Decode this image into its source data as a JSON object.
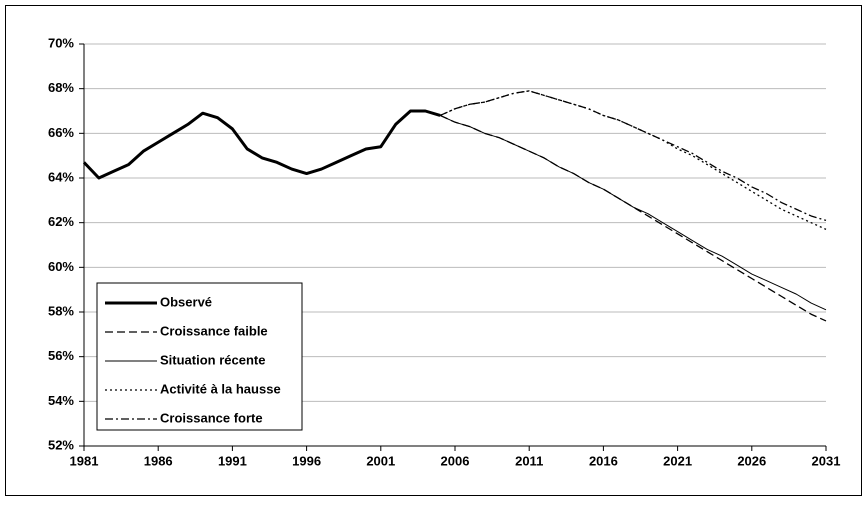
{
  "chart_data": {
    "type": "line",
    "x": [
      1981,
      1982,
      1983,
      1984,
      1985,
      1986,
      1987,
      1988,
      1989,
      1990,
      1991,
      1992,
      1993,
      1994,
      1995,
      1996,
      1997,
      1998,
      1999,
      2000,
      2001,
      2002,
      2003,
      2004,
      2005,
      2006,
      2007,
      2008,
      2009,
      2010,
      2011,
      2012,
      2013,
      2014,
      2015,
      2016,
      2017,
      2018,
      2019,
      2020,
      2021,
      2022,
      2023,
      2024,
      2025,
      2026,
      2027,
      2028,
      2029,
      2030,
      2031
    ],
    "series": [
      {
        "name": "Observé",
        "color": "#000000",
        "style": "thick",
        "values": [
          64.7,
          64.0,
          64.3,
          64.6,
          65.2,
          65.6,
          66.0,
          66.4,
          66.9,
          66.7,
          66.2,
          65.3,
          64.9,
          64.7,
          64.4,
          64.2,
          64.4,
          64.7,
          65.0,
          65.3,
          65.4,
          66.4,
          67.0,
          67.0,
          66.8,
          null,
          null,
          null,
          null,
          null,
          null,
          null,
          null,
          null,
          null,
          null,
          null,
          null,
          null,
          null,
          null,
          null,
          null,
          null,
          null,
          null,
          null,
          null,
          null,
          null,
          null
        ]
      },
      {
        "name": "Croissance faible",
        "color": "#000000",
        "style": "dashed",
        "values": [
          null,
          null,
          null,
          null,
          null,
          null,
          null,
          null,
          null,
          null,
          null,
          null,
          null,
          null,
          null,
          null,
          null,
          null,
          null,
          null,
          null,
          null,
          null,
          null,
          66.8,
          66.5,
          66.3,
          66.0,
          65.8,
          65.5,
          65.2,
          64.9,
          64.5,
          64.2,
          63.8,
          63.5,
          63.1,
          62.7,
          62.3,
          61.9,
          61.5,
          61.1,
          60.7,
          60.3,
          59.9,
          59.5,
          59.1,
          58.7,
          58.3,
          57.9,
          57.6
        ]
      },
      {
        "name": "Situation récente",
        "color": "#000000",
        "style": "thin",
        "values": [
          null,
          null,
          null,
          null,
          null,
          null,
          null,
          null,
          null,
          null,
          null,
          null,
          null,
          null,
          null,
          null,
          null,
          null,
          null,
          null,
          null,
          null,
          null,
          null,
          66.8,
          66.5,
          66.3,
          66.0,
          65.8,
          65.5,
          65.2,
          64.9,
          64.5,
          64.2,
          63.8,
          63.5,
          63.1,
          62.7,
          62.4,
          62.0,
          61.6,
          61.2,
          60.8,
          60.5,
          60.1,
          59.7,
          59.4,
          59.1,
          58.8,
          58.4,
          58.1
        ]
      },
      {
        "name": "Activité à la hausse",
        "color": "#000000",
        "style": "dotted",
        "values": [
          null,
          null,
          null,
          null,
          null,
          null,
          null,
          null,
          null,
          null,
          null,
          null,
          null,
          null,
          null,
          null,
          null,
          null,
          null,
          null,
          null,
          null,
          null,
          null,
          66.8,
          67.1,
          67.3,
          67.4,
          67.6,
          67.8,
          67.9,
          67.7,
          67.5,
          67.3,
          67.1,
          66.8,
          66.6,
          66.3,
          66.0,
          65.7,
          65.3,
          65.0,
          64.6,
          64.2,
          63.8,
          63.4,
          63.0,
          62.6,
          62.3,
          62.0,
          61.7
        ]
      },
      {
        "name": "Croissance forte",
        "color": "#000000",
        "style": "dash-dot",
        "values": [
          null,
          null,
          null,
          null,
          null,
          null,
          null,
          null,
          null,
          null,
          null,
          null,
          null,
          null,
          null,
          null,
          null,
          null,
          null,
          null,
          null,
          null,
          null,
          null,
          66.8,
          67.1,
          67.3,
          67.4,
          67.6,
          67.8,
          67.9,
          67.7,
          67.5,
          67.3,
          67.1,
          66.8,
          66.6,
          66.3,
          66.0,
          65.7,
          65.4,
          65.1,
          64.7,
          64.3,
          64.0,
          63.6,
          63.3,
          62.9,
          62.6,
          62.3,
          62.1
        ]
      }
    ],
    "xlim": [
      1981,
      2031
    ],
    "xticks": [
      1981,
      1986,
      1991,
      1996,
      2001,
      2006,
      2011,
      2016,
      2021,
      2026,
      2031
    ],
    "ylim": [
      52,
      70
    ],
    "yticks": [
      {
        "value": 52,
        "label": "52%"
      },
      {
        "value": 54,
        "label": "54%"
      },
      {
        "value": 56,
        "label": "56%"
      },
      {
        "value": 58,
        "label": "58%"
      },
      {
        "value": 60,
        "label": "60%"
      },
      {
        "value": 62,
        "label": "62%"
      },
      {
        "value": 64,
        "label": "64%"
      },
      {
        "value": 66,
        "label": "66%"
      },
      {
        "value": 68,
        "label": "68%"
      },
      {
        "value": 70,
        "label": "70%"
      }
    ],
    "grid": true,
    "legend": "lower-left"
  }
}
